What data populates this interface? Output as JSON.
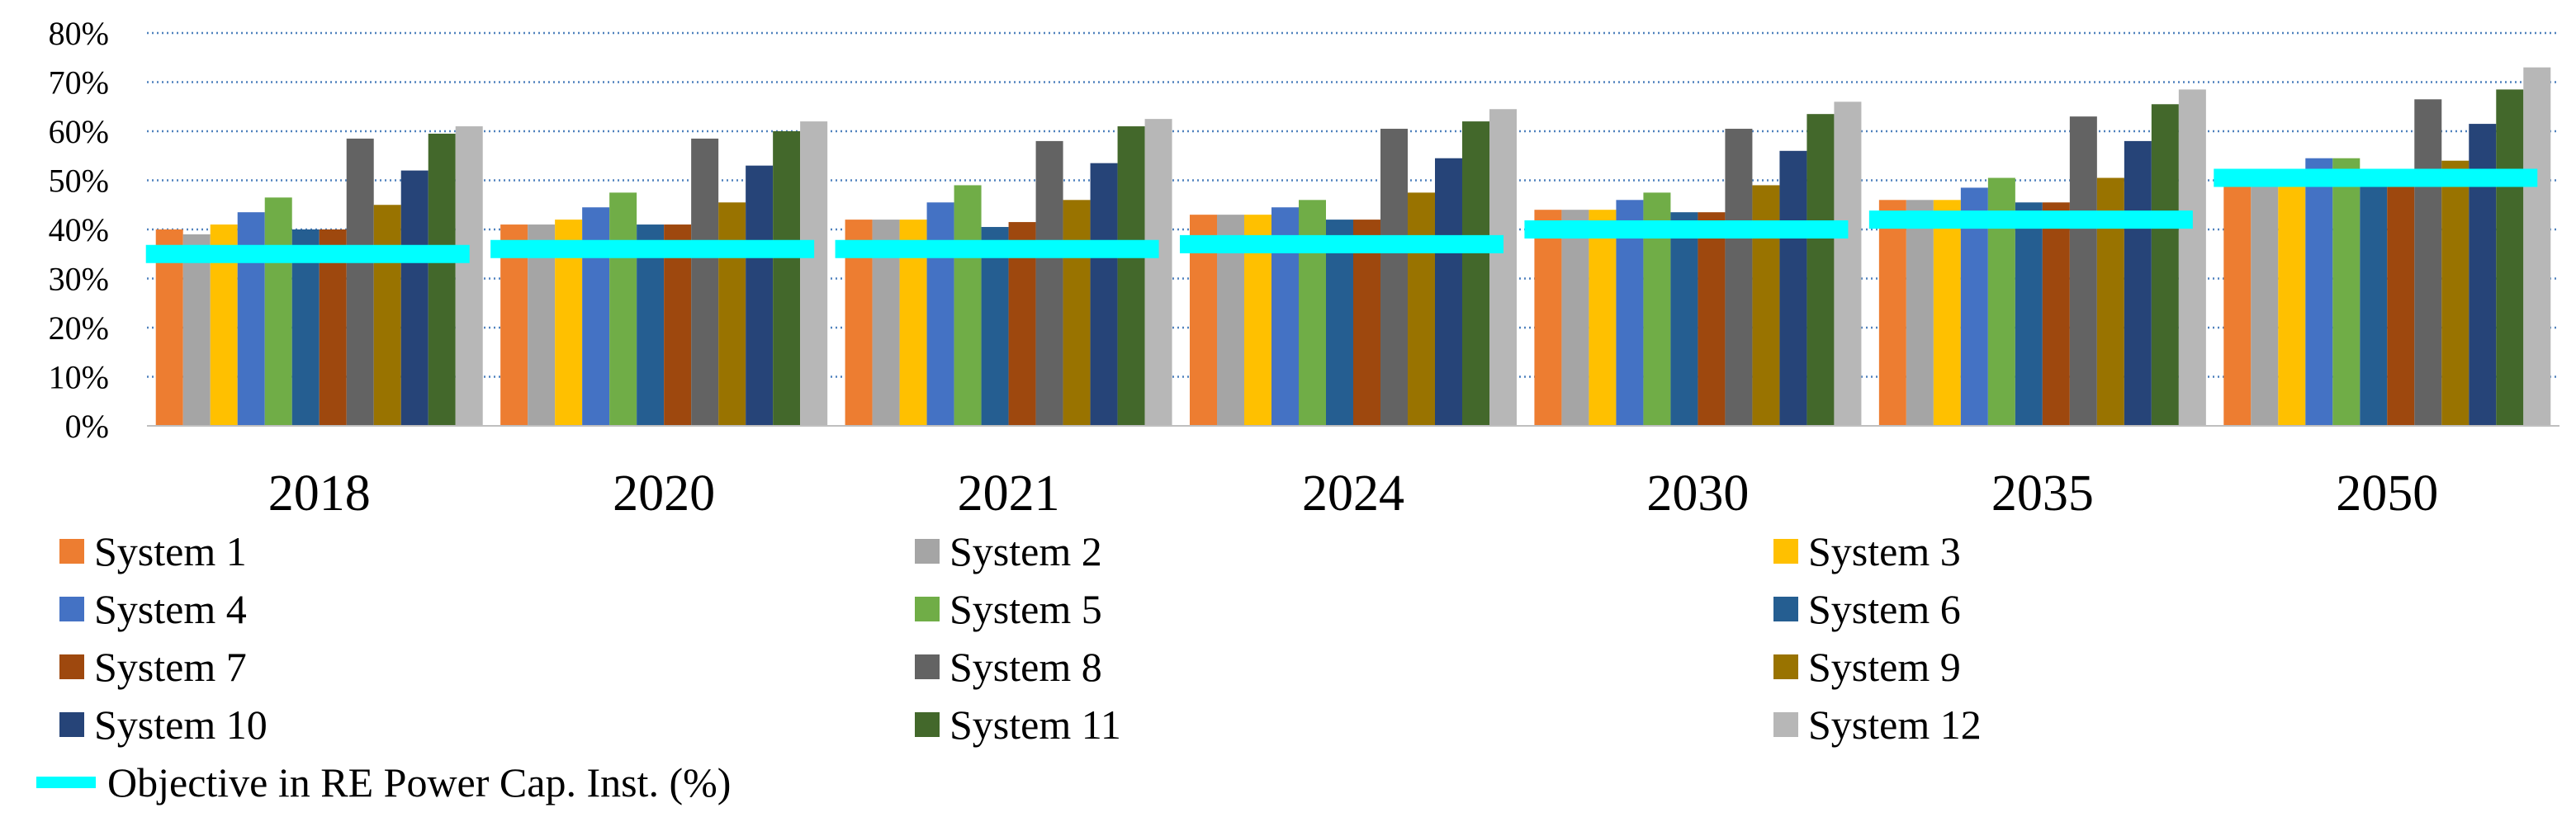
{
  "chart_data": {
    "type": "bar",
    "categories": [
      "2018",
      "2020",
      "2021",
      "2024",
      "2030",
      "2035",
      "2050"
    ],
    "ylim": [
      0,
      80
    ],
    "yticks": [
      "0%",
      "10%",
      "20%",
      "30%",
      "40%",
      "50%",
      "60%",
      "70%",
      "80%"
    ],
    "grid": "horizontal dotted",
    "series": [
      {
        "name": "System 1",
        "color": "#ED7D31",
        "values": [
          40,
          41,
          42,
          43,
          44,
          46,
          50
        ]
      },
      {
        "name": "System 2",
        "color": "#A5A5A5",
        "values": [
          39,
          41,
          42,
          43,
          44,
          46,
          49
        ]
      },
      {
        "name": "System 3",
        "color": "#FFC000",
        "values": [
          41,
          42,
          42,
          43,
          44,
          46,
          50
        ]
      },
      {
        "name": "System 4",
        "color": "#4472C4",
        "values": [
          43.5,
          44.5,
          45.5,
          44.5,
          46,
          48.5,
          54.5
        ]
      },
      {
        "name": "System 5",
        "color": "#70AD47",
        "values": [
          46.5,
          47.5,
          49,
          46,
          47.5,
          50.5,
          54.5
        ]
      },
      {
        "name": "System 6",
        "color": "#255E91",
        "values": [
          40,
          41,
          40.5,
          42,
          43.5,
          45.5,
          49
        ]
      },
      {
        "name": "System 7",
        "color": "#9E480E",
        "values": [
          40,
          41,
          41.5,
          42,
          43.5,
          45.5,
          49
        ]
      },
      {
        "name": "System 8",
        "color": "#636363",
        "values": [
          58.5,
          58.5,
          58,
          60.5,
          60.5,
          63,
          66.5
        ]
      },
      {
        "name": "System 9",
        "color": "#997300",
        "values": [
          45,
          45.5,
          46,
          47.5,
          49,
          50.5,
          54
        ]
      },
      {
        "name": "System 10",
        "color": "#264478",
        "values": [
          52,
          53,
          53.5,
          54.5,
          56,
          58,
          61.5
        ]
      },
      {
        "name": "System 11",
        "color": "#43682B",
        "values": [
          59.5,
          60,
          61,
          62,
          63.5,
          65.5,
          68.5
        ]
      },
      {
        "name": "System 12",
        "color": "#B7B7B7",
        "values": [
          61,
          62,
          62.5,
          64.5,
          66,
          68.5,
          73
        ]
      }
    ],
    "objective": {
      "name": "Objective in RE Power Cap. Inst. (%)",
      "color": "#00FFFF",
      "values": [
        35,
        36,
        36,
        37,
        40,
        42,
        50.5
      ]
    },
    "legend": "bottom"
  }
}
